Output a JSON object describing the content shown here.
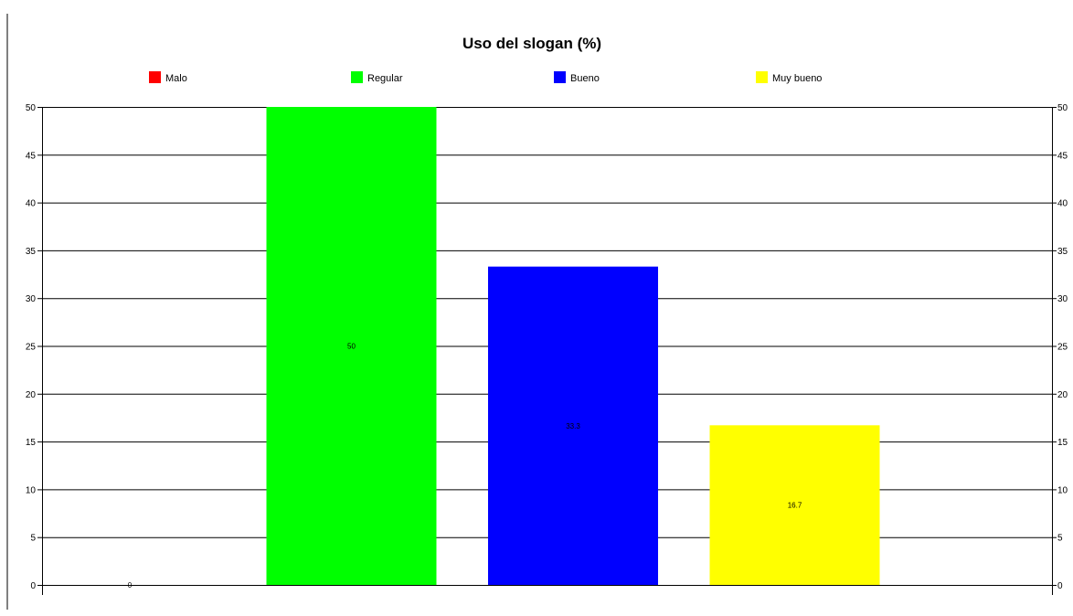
{
  "chart_data": {
    "type": "bar",
    "title": "Uso del slogan (%)",
    "xlabel": "",
    "ylabel": "",
    "categories": [
      "Malo",
      "Regular",
      "Bueno",
      "Muy bueno"
    ],
    "values": [
      0,
      50,
      33.3,
      16.7
    ],
    "data_labels": [
      "0",
      "50",
      "33.3",
      "16.7"
    ],
    "colors": [
      "#ff0000",
      "#00ff00",
      "#0000ff",
      "#ffff00"
    ],
    "ylim": [
      0,
      50
    ],
    "y_ticks": [
      0,
      5,
      10,
      15,
      20,
      25,
      30,
      35,
      40,
      45,
      50
    ],
    "grid": true,
    "legend": {
      "position": "top",
      "entries": [
        "Malo",
        "Regular",
        "Bueno",
        "Muy bueno"
      ]
    },
    "secondary_y_axis": true
  }
}
